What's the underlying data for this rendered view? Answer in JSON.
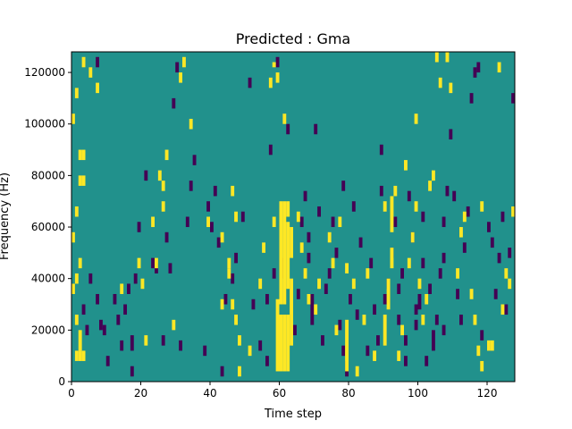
{
  "chart_data": {
    "type": "heatmap",
    "title": "Predicted : Gma",
    "xlabel": "Time step",
    "ylabel": "Frequency (Hz)",
    "xlim": [
      0,
      128
    ],
    "ylim": [
      0,
      128000
    ],
    "x_ticks": [
      0,
      20,
      40,
      60,
      80,
      100,
      120
    ],
    "y_ticks": [
      0,
      20000,
      40000,
      60000,
      80000,
      100000,
      120000
    ],
    "x_tick_labels": [
      "0",
      "20",
      "40",
      "60",
      "80",
      "100",
      "120"
    ],
    "y_tick_labels": [
      "0",
      "20000",
      "40000",
      "60000",
      "80000",
      "100000",
      "120000"
    ],
    "colormap": "viridis",
    "value_levels": {
      "low": -1,
      "mid": 0,
      "high": 1
    },
    "colors": {
      "low": "#440154",
      "mid": "#21918c",
      "high": "#fde725"
    },
    "background_value": 0,
    "grid": false,
    "cells_high": [
      [
        61,
        4000,
        26000
      ],
      [
        62,
        4000,
        26000
      ],
      [
        63,
        4000,
        26000
      ],
      [
        60,
        4000,
        32000
      ],
      [
        61,
        30000,
        70000
      ],
      [
        62,
        30000,
        70000
      ],
      [
        63,
        36000,
        62000
      ],
      [
        64,
        14000,
        40000
      ],
      [
        64,
        48000,
        60000
      ],
      [
        63,
        64000,
        70000
      ],
      [
        62,
        100000,
        104000
      ],
      [
        58,
        114000,
        118000
      ],
      [
        60,
        116000,
        120000
      ],
      [
        59,
        122000,
        124000
      ],
      [
        2,
        8000,
        12000
      ],
      [
        3,
        8000,
        12000
      ],
      [
        4,
        8000,
        12000
      ],
      [
        3,
        12000,
        20000
      ],
      [
        2,
        38000,
        42000
      ],
      [
        3,
        44000,
        48000
      ],
      [
        1,
        34000,
        38000
      ],
      [
        2,
        22000,
        26000
      ],
      [
        1,
        54000,
        58000
      ],
      [
        2,
        64000,
        68000
      ],
      [
        3,
        76000,
        80000
      ],
      [
        4,
        76000,
        80000
      ],
      [
        3,
        86000,
        90000
      ],
      [
        4,
        86000,
        90000
      ],
      [
        1,
        100000,
        104000
      ],
      [
        2,
        110000,
        114000
      ],
      [
        6,
        118000,
        122000
      ],
      [
        4,
        122000,
        126000
      ],
      [
        8,
        112000,
        116000
      ],
      [
        15,
        34000,
        38000
      ],
      [
        20,
        44000,
        48000
      ],
      [
        21,
        36000,
        40000
      ],
      [
        22,
        14000,
        18000
      ],
      [
        27,
        66000,
        70000
      ],
      [
        26,
        78000,
        82000
      ],
      [
        27,
        74000,
        78000
      ],
      [
        28,
        86000,
        90000
      ],
      [
        30,
        20000,
        24000
      ],
      [
        24,
        60000,
        64000
      ],
      [
        25,
        44000,
        48000
      ],
      [
        33,
        122000,
        126000
      ],
      [
        32,
        116000,
        120000
      ],
      [
        35,
        98000,
        102000
      ],
      [
        40,
        60000,
        64000
      ],
      [
        44,
        54000,
        58000
      ],
      [
        46,
        44000,
        48000
      ],
      [
        47,
        28000,
        32000
      ],
      [
        48,
        22000,
        26000
      ],
      [
        49,
        14000,
        18000
      ],
      [
        48,
        62000,
        66000
      ],
      [
        47,
        72000,
        76000
      ],
      [
        46,
        40000,
        44000
      ],
      [
        49,
        2000,
        6000
      ],
      [
        44,
        28000,
        32000
      ],
      [
        52,
        10000,
        14000
      ],
      [
        55,
        36000,
        40000
      ],
      [
        56,
        50000,
        54000
      ],
      [
        59,
        60000,
        64000
      ],
      [
        66,
        62000,
        66000
      ],
      [
        67,
        50000,
        54000
      ],
      [
        68,
        40000,
        44000
      ],
      [
        69,
        30000,
        34000
      ],
      [
        71,
        26000,
        30000
      ],
      [
        72,
        36000,
        40000
      ],
      [
        75,
        54000,
        58000
      ],
      [
        76,
        44000,
        48000
      ],
      [
        77,
        18000,
        22000
      ],
      [
        78,
        60000,
        64000
      ],
      [
        80,
        4000,
        24000
      ],
      [
        80,
        42000,
        46000
      ],
      [
        82,
        36000,
        40000
      ],
      [
        83,
        2000,
        6000
      ],
      [
        85,
        22000,
        26000
      ],
      [
        86,
        40000,
        44000
      ],
      [
        88,
        8000,
        12000
      ],
      [
        91,
        14000,
        26000
      ],
      [
        92,
        28000,
        40000
      ],
      [
        93,
        44000,
        52000
      ],
      [
        93,
        58000,
        72000
      ],
      [
        94,
        72000,
        76000
      ],
      [
        95,
        8000,
        12000
      ],
      [
        96,
        18000,
        22000
      ],
      [
        97,
        82000,
        86000
      ],
      [
        98,
        44000,
        48000
      ],
      [
        99,
        54000,
        58000
      ],
      [
        100,
        66000,
        70000
      ],
      [
        101,
        36000,
        40000
      ],
      [
        102,
        22000,
        26000
      ],
      [
        103,
        30000,
        34000
      ],
      [
        104,
        74000,
        78000
      ],
      [
        105,
        78000,
        82000
      ],
      [
        106,
        124000,
        128000
      ],
      [
        107,
        114000,
        118000
      ],
      [
        109,
        124000,
        128000
      ],
      [
        110,
        112000,
        116000
      ],
      [
        112,
        40000,
        44000
      ],
      [
        113,
        56000,
        60000
      ],
      [
        114,
        62000,
        66000
      ],
      [
        116,
        32000,
        36000
      ],
      [
        117,
        22000,
        26000
      ],
      [
        118,
        10000,
        14000
      ],
      [
        119,
        4000,
        8000
      ],
      [
        119,
        66000,
        70000
      ],
      [
        121,
        12000,
        16000
      ],
      [
        122,
        12000,
        16000
      ],
      [
        124,
        120000,
        124000
      ],
      [
        125,
        26000,
        30000
      ],
      [
        126,
        40000,
        44000
      ],
      [
        127,
        36000,
        40000
      ],
      [
        128,
        64000,
        68000
      ],
      [
        91,
        66000,
        70000
      ],
      [
        100,
        100000,
        104000
      ]
    ],
    "cells_low": [
      [
        8,
        122000,
        126000
      ],
      [
        4,
        26000,
        30000
      ],
      [
        5,
        18000,
        22000
      ],
      [
        6,
        38000,
        42000
      ],
      [
        8,
        30000,
        34000
      ],
      [
        9,
        20000,
        24000
      ],
      [
        10,
        18000,
        22000
      ],
      [
        11,
        6000,
        10000
      ],
      [
        13,
        30000,
        34000
      ],
      [
        14,
        22000,
        26000
      ],
      [
        15,
        12000,
        16000
      ],
      [
        16,
        26000,
        30000
      ],
      [
        17,
        34000,
        38000
      ],
      [
        18,
        2000,
        6000
      ],
      [
        18,
        12000,
        18000
      ],
      [
        19,
        38000,
        42000
      ],
      [
        20,
        58000,
        62000
      ],
      [
        22,
        78000,
        82000
      ],
      [
        24,
        44000,
        48000
      ],
      [
        25,
        42000,
        46000
      ],
      [
        27,
        14000,
        18000
      ],
      [
        28,
        54000,
        58000
      ],
      [
        29,
        42000,
        46000
      ],
      [
        30,
        106000,
        110000
      ],
      [
        31,
        120000,
        124000
      ],
      [
        32,
        12000,
        16000
      ],
      [
        34,
        60000,
        64000
      ],
      [
        35,
        74000,
        78000
      ],
      [
        36,
        84000,
        88000
      ],
      [
        39,
        10000,
        14000
      ],
      [
        40,
        66000,
        70000
      ],
      [
        41,
        58000,
        62000
      ],
      [
        42,
        72000,
        76000
      ],
      [
        43,
        52000,
        56000
      ],
      [
        44,
        2000,
        6000
      ],
      [
        45,
        30000,
        34000
      ],
      [
        47,
        38000,
        42000
      ],
      [
        48,
        46000,
        50000
      ],
      [
        50,
        62000,
        66000
      ],
      [
        52,
        114000,
        118000
      ],
      [
        53,
        28000,
        32000
      ],
      [
        55,
        12000,
        16000
      ],
      [
        57,
        6000,
        10000
      ],
      [
        57,
        30000,
        34000
      ],
      [
        58,
        88000,
        92000
      ],
      [
        59,
        40000,
        44000
      ],
      [
        60,
        122000,
        126000
      ],
      [
        61,
        40000,
        48000
      ],
      [
        63,
        96000,
        100000
      ],
      [
        65,
        18000,
        22000
      ],
      [
        66,
        32000,
        36000
      ],
      [
        67,
        60000,
        64000
      ],
      [
        68,
        70000,
        74000
      ],
      [
        69,
        54000,
        58000
      ],
      [
        70,
        22000,
        34000
      ],
      [
        71,
        96000,
        100000
      ],
      [
        72,
        64000,
        68000
      ],
      [
        73,
        14000,
        18000
      ],
      [
        74,
        34000,
        38000
      ],
      [
        75,
        40000,
        44000
      ],
      [
        76,
        60000,
        64000
      ],
      [
        77,
        48000,
        52000
      ],
      [
        78,
        20000,
        24000
      ],
      [
        79,
        10000,
        14000
      ],
      [
        79,
        74000,
        78000
      ],
      [
        80,
        2000,
        8000
      ],
      [
        81,
        30000,
        34000
      ],
      [
        82,
        66000,
        70000
      ],
      [
        83,
        24000,
        28000
      ],
      [
        84,
        52000,
        56000
      ],
      [
        86,
        10000,
        14000
      ],
      [
        87,
        44000,
        48000
      ],
      [
        88,
        26000,
        30000
      ],
      [
        89,
        14000,
        18000
      ],
      [
        90,
        88000,
        92000
      ],
      [
        91,
        30000,
        34000
      ],
      [
        92,
        36000,
        40000
      ],
      [
        93,
        48000,
        52000
      ],
      [
        94,
        60000,
        64000
      ],
      [
        95,
        22000,
        26000
      ],
      [
        96,
        40000,
        44000
      ],
      [
        97,
        14000,
        18000
      ],
      [
        98,
        70000,
        74000
      ],
      [
        99,
        54000,
        58000
      ],
      [
        100,
        26000,
        30000
      ],
      [
        101,
        28000,
        34000
      ],
      [
        102,
        44000,
        48000
      ],
      [
        103,
        6000,
        10000
      ],
      [
        104,
        34000,
        38000
      ],
      [
        105,
        12000,
        20000
      ],
      [
        106,
        22000,
        26000
      ],
      [
        107,
        40000,
        44000
      ],
      [
        108,
        60000,
        64000
      ],
      [
        109,
        72000,
        76000
      ],
      [
        110,
        94000,
        98000
      ],
      [
        111,
        70000,
        74000
      ],
      [
        112,
        32000,
        36000
      ],
      [
        113,
        22000,
        26000
      ],
      [
        114,
        50000,
        54000
      ],
      [
        115,
        64000,
        68000
      ],
      [
        116,
        108000,
        112000
      ],
      [
        117,
        118000,
        122000
      ],
      [
        118,
        120000,
        124000
      ],
      [
        121,
        58000,
        62000
      ],
      [
        122,
        52000,
        56000
      ],
      [
        123,
        32000,
        36000
      ],
      [
        124,
        46000,
        50000
      ],
      [
        125,
        62000,
        66000
      ],
      [
        126,
        26000,
        30000
      ],
      [
        127,
        48000,
        52000
      ],
      [
        128,
        108000,
        112000
      ],
      [
        97,
        6000,
        10000
      ],
      [
        102,
        62000,
        66000
      ],
      [
        108,
        46000,
        50000
      ],
      [
        119,
        16000,
        20000
      ],
      [
        100,
        20000,
        24000
      ],
      [
        108,
        18000,
        22000
      ],
      [
        69,
        46000,
        50000
      ],
      [
        95,
        34000,
        38000
      ],
      [
        90,
        72000,
        76000
      ]
    ]
  }
}
